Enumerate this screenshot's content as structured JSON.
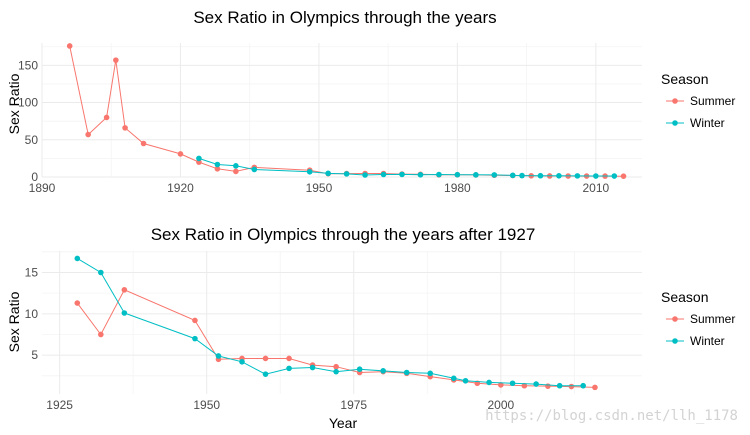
{
  "chart_data": [
    {
      "type": "line",
      "title": "Sex Ratio in Olympics through the years",
      "xlabel": "",
      "ylabel": "Sex Ratio",
      "xlim": [
        1890,
        2020
      ],
      "ylim": [
        0,
        180
      ],
      "x_ticks": [
        "1890",
        "1920",
        "1950",
        "1980",
        "2010"
      ],
      "y_ticks": [
        "0",
        "50",
        "100",
        "150"
      ],
      "legend_title": "Season",
      "series": [
        {
          "name": "Summer",
          "color": "#F8766D",
          "x": [
            1896,
            1900,
            1904,
            1906,
            1908,
            1912,
            1920,
            1924,
            1928,
            1932,
            1936,
            1948,
            1952,
            1956,
            1960,
            1964,
            1968,
            1972,
            1976,
            1980,
            1984,
            1988,
            1992,
            1996,
            2000,
            2004,
            2008,
            2012,
            2016
          ],
          "y": [
            176,
            57,
            80,
            157,
            66,
            45,
            31,
            20,
            11,
            7.5,
            12.9,
            9.2,
            4.5,
            4.6,
            4.7,
            4.7,
            3.9,
            3.6,
            2.9,
            3.0,
            2.8,
            2.4,
            2.0,
            1.6,
            1.4,
            1.3,
            1.25,
            1.2,
            1.1
          ]
        },
        {
          "name": "Winter",
          "color": "#00BFC4",
          "x": [
            1924,
            1928,
            1932,
            1936,
            1948,
            1952,
            1956,
            1960,
            1964,
            1968,
            1972,
            1976,
            1980,
            1984,
            1988,
            1992,
            1994,
            1998,
            2002,
            2006,
            2010,
            2014
          ],
          "y": [
            25,
            16.8,
            15.0,
            10.1,
            7.0,
            4.9,
            4.2,
            2.7,
            3.4,
            3.5,
            3.0,
            3.3,
            3.1,
            2.9,
            2.8,
            2.2,
            1.9,
            1.7,
            1.6,
            1.5,
            1.3,
            1.3
          ]
        }
      ]
    },
    {
      "type": "line",
      "title": "Sex Ratio in Olympics through the years after 1927",
      "xlabel": "Year",
      "ylabel": "Sex Ratio",
      "xlim": [
        1922,
        2024
      ],
      "ylim": [
        0.3,
        17.6
      ],
      "x_ticks": [
        "1925",
        "1950",
        "1975",
        "2000"
      ],
      "y_ticks": [
        "5",
        "10",
        "15"
      ],
      "legend_title": "Season",
      "series": [
        {
          "name": "Summer",
          "color": "#F8766D",
          "x": [
            1928,
            1932,
            1936,
            1948,
            1952,
            1956,
            1960,
            1964,
            1968,
            1972,
            1976,
            1980,
            1984,
            1988,
            1992,
            1996,
            2000,
            2004,
            2008,
            2012,
            2016
          ],
          "y": [
            11.3,
            7.5,
            12.9,
            9.2,
            4.5,
            4.6,
            4.6,
            4.6,
            3.8,
            3.6,
            2.9,
            3.0,
            2.8,
            2.4,
            2.0,
            1.6,
            1.4,
            1.3,
            1.25,
            1.2,
            1.1
          ]
        },
        {
          "name": "Winter",
          "color": "#00BFC4",
          "x": [
            1928,
            1932,
            1936,
            1948,
            1952,
            1956,
            1960,
            1964,
            1968,
            1972,
            1976,
            1980,
            1984,
            1988,
            1992,
            1994,
            1998,
            2002,
            2006,
            2010,
            2014
          ],
          "y": [
            16.7,
            15.0,
            10.1,
            7.0,
            4.9,
            4.2,
            2.7,
            3.4,
            3.5,
            3.0,
            3.3,
            3.1,
            2.9,
            2.8,
            2.2,
            1.9,
            1.7,
            1.6,
            1.5,
            1.3,
            1.3
          ]
        }
      ]
    }
  ],
  "watermark": "https://blog.csdn.net/llh_1178"
}
